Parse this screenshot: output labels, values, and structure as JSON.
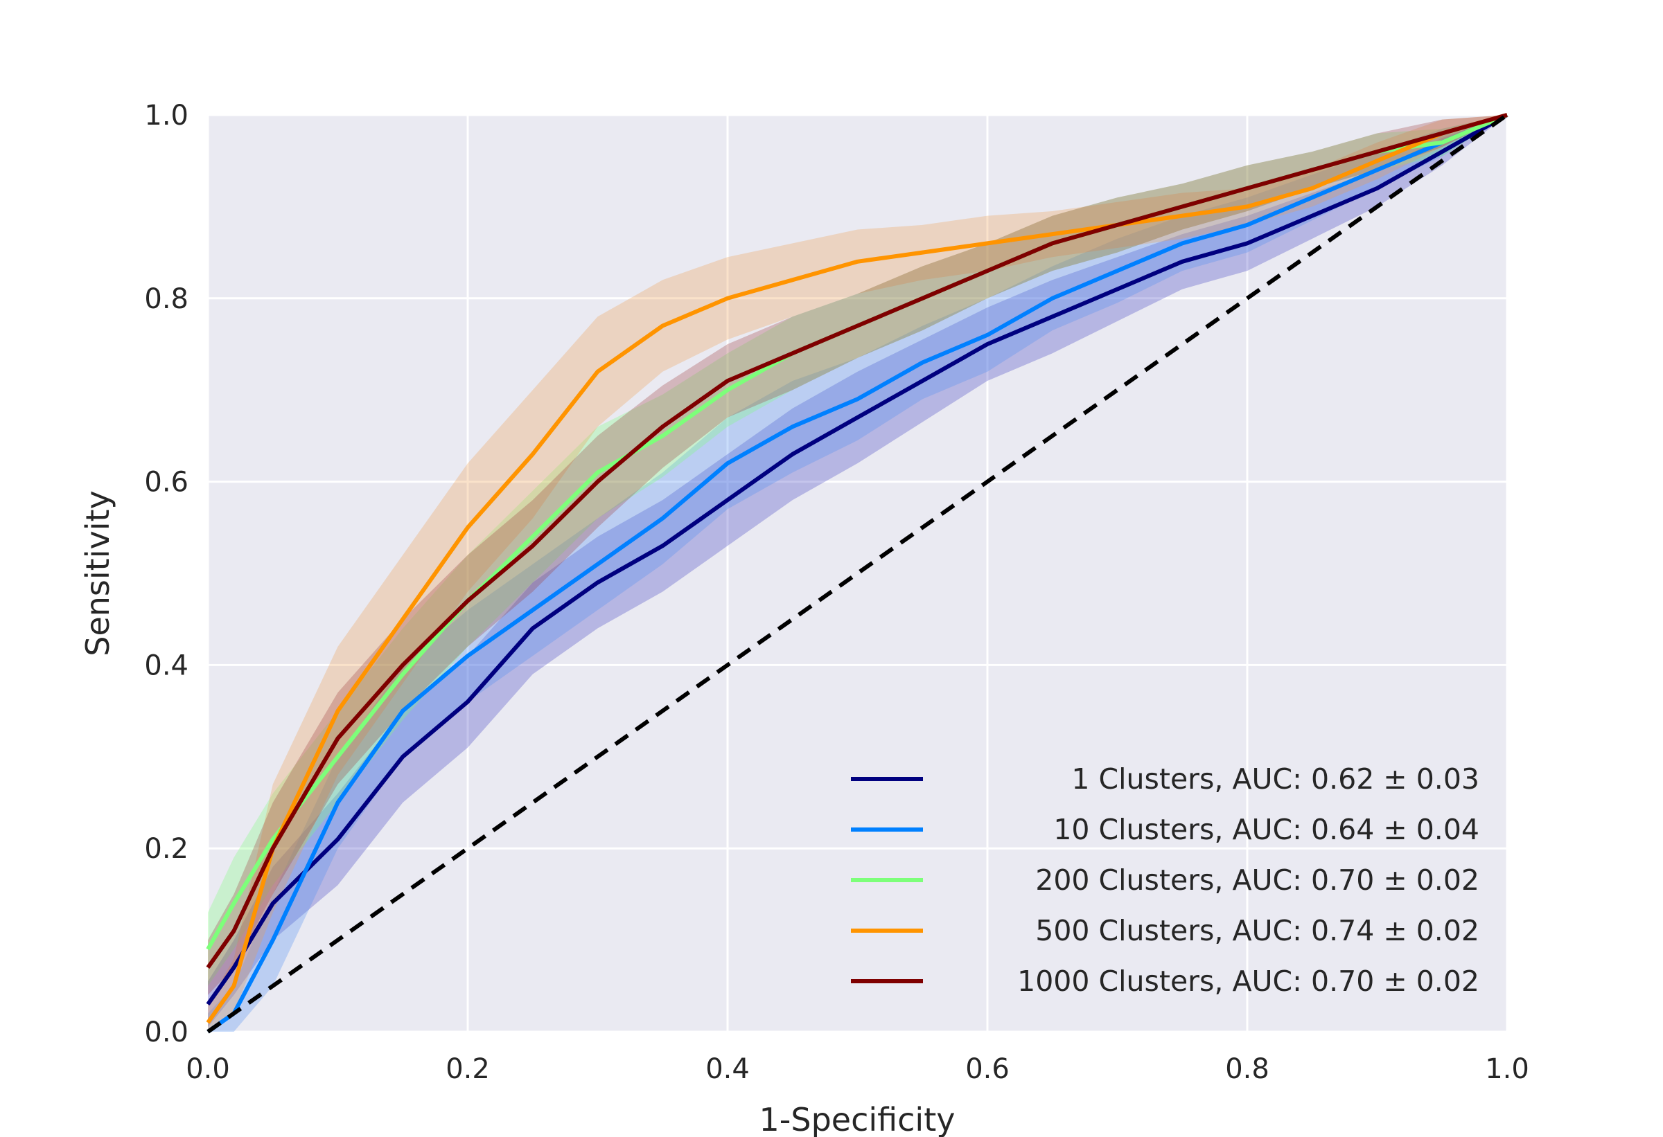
{
  "chart_data": {
    "type": "line",
    "title": "",
    "xlabel": "1-Specificity",
    "ylabel": "Sensitivity",
    "xlim": [
      0,
      1
    ],
    "ylim": [
      0,
      1
    ],
    "grid": true,
    "legend_position": "bottom-right",
    "x_ticks": [
      "0.0",
      "0.2",
      "0.4",
      "0.6",
      "0.8",
      "1.0"
    ],
    "y_ticks": [
      "0.0",
      "0.2",
      "0.4",
      "0.6",
      "0.8",
      "1.0"
    ],
    "x": [
      0,
      0.02,
      0.05,
      0.1,
      0.15,
      0.2,
      0.25,
      0.3,
      0.35,
      0.4,
      0.45,
      0.5,
      0.55,
      0.6,
      0.65,
      0.7,
      0.75,
      0.8,
      0.85,
      0.9,
      0.95,
      1.0
    ],
    "reference_line": {
      "x": [
        0,
        1
      ],
      "y": [
        0,
        1
      ],
      "style": "dashed",
      "color": "#000000"
    },
    "series": [
      {
        "name": "1 Clusters,  AUC: 0.62 ± 0.03",
        "color": "#00007f",
        "band_color": "#4040c0",
        "y": [
          0.03,
          0.07,
          0.14,
          0.21,
          0.3,
          0.36,
          0.44,
          0.49,
          0.53,
          0.58,
          0.63,
          0.67,
          0.71,
          0.75,
          0.78,
          0.81,
          0.84,
          0.86,
          0.89,
          0.92,
          0.96,
          1.0
        ],
        "band": [
          0.025,
          0.03,
          0.04,
          0.05,
          0.05,
          0.05,
          0.05,
          0.05,
          0.05,
          0.05,
          0.05,
          0.05,
          0.045,
          0.04,
          0.04,
          0.035,
          0.03,
          0.03,
          0.025,
          0.02,
          0.015,
          0.0
        ]
      },
      {
        "name": "10 Clusters,  AUC: 0.64 ± 0.04",
        "color": "#0080ff",
        "band_color": "#4f8ff2",
        "y": [
          0.0,
          0.02,
          0.1,
          0.25,
          0.35,
          0.41,
          0.46,
          0.51,
          0.56,
          0.62,
          0.66,
          0.69,
          0.73,
          0.76,
          0.8,
          0.83,
          0.86,
          0.88,
          0.91,
          0.94,
          0.97,
          1.0
        ],
        "band": [
          0.02,
          0.03,
          0.05,
          0.05,
          0.05,
          0.05,
          0.05,
          0.05,
          0.05,
          0.05,
          0.05,
          0.045,
          0.04,
          0.04,
          0.035,
          0.035,
          0.03,
          0.03,
          0.025,
          0.02,
          0.015,
          0.0
        ]
      },
      {
        "name": "200 Clusters,  AUC: 0.70 ± 0.02",
        "color": "#7dff7a",
        "band_color": "#7dff7a",
        "y": [
          0.09,
          0.14,
          0.21,
          0.3,
          0.39,
          0.47,
          0.54,
          0.61,
          0.65,
          0.7,
          0.74,
          0.77,
          0.8,
          0.83,
          0.86,
          0.88,
          0.9,
          0.92,
          0.94,
          0.96,
          0.97,
          1.0
        ],
        "band": [
          0.04,
          0.05,
          0.05,
          0.05,
          0.05,
          0.05,
          0.05,
          0.05,
          0.045,
          0.04,
          0.04,
          0.035,
          0.035,
          0.03,
          0.03,
          0.03,
          0.025,
          0.025,
          0.02,
          0.02,
          0.015,
          0.0
        ]
      },
      {
        "name": "500 Clusters,  AUC: 0.74 ± 0.02",
        "color": "#ff9400",
        "band_color": "#f0a050",
        "y": [
          0.01,
          0.05,
          0.2,
          0.35,
          0.45,
          0.55,
          0.63,
          0.72,
          0.77,
          0.8,
          0.82,
          0.84,
          0.85,
          0.86,
          0.87,
          0.88,
          0.89,
          0.9,
          0.92,
          0.95,
          0.98,
          1.0
        ],
        "band": [
          0.02,
          0.03,
          0.07,
          0.07,
          0.07,
          0.07,
          0.07,
          0.06,
          0.05,
          0.045,
          0.04,
          0.035,
          0.03,
          0.03,
          0.025,
          0.025,
          0.025,
          0.02,
          0.02,
          0.02,
          0.015,
          0.0
        ]
      },
      {
        "name": "1000 Clusters,  AUC: 0.70 ± 0.02",
        "color": "#7f0000",
        "band_color": "#a04040",
        "y": [
          0.07,
          0.11,
          0.2,
          0.32,
          0.4,
          0.47,
          0.53,
          0.6,
          0.66,
          0.71,
          0.74,
          0.77,
          0.8,
          0.83,
          0.86,
          0.88,
          0.9,
          0.92,
          0.94,
          0.96,
          0.98,
          1.0
        ],
        "band": [
          0.03,
          0.04,
          0.05,
          0.05,
          0.05,
          0.05,
          0.05,
          0.05,
          0.045,
          0.04,
          0.04,
          0.035,
          0.035,
          0.03,
          0.03,
          0.03,
          0.025,
          0.025,
          0.02,
          0.02,
          0.015,
          0.0
        ]
      }
    ]
  }
}
